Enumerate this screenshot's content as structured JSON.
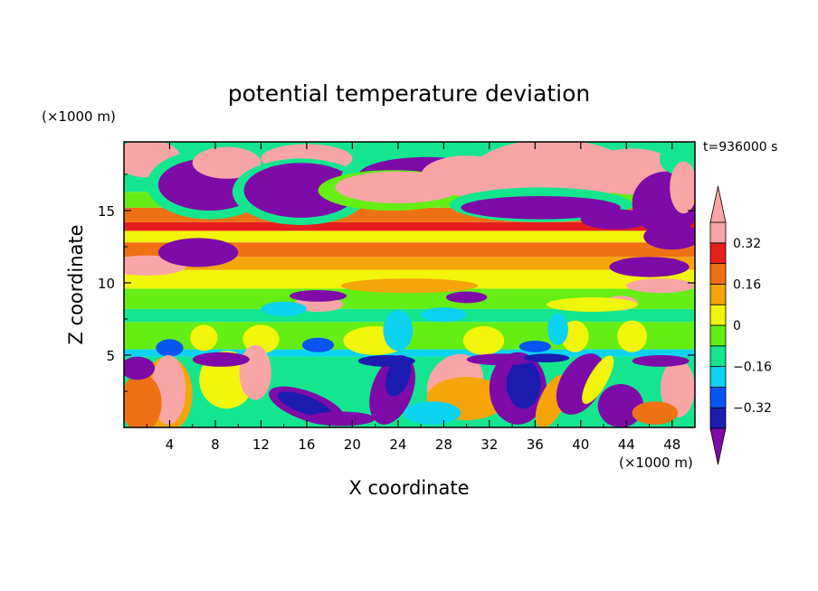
{
  "chart_data": {
    "type": "heatmap",
    "title": "potential temperature deviation",
    "xlabel": "X coordinate",
    "ylabel": "Z coordinate",
    "x_unit": "(×1000 m)",
    "y_unit": "(×1000 m)",
    "time_label": "t=936000 s",
    "xlim": [
      0,
      50
    ],
    "ylim": [
      0,
      19.75
    ],
    "x_ticks": [
      4,
      8,
      12,
      16,
      20,
      24,
      28,
      32,
      36,
      40,
      44,
      48
    ],
    "x_tick_labels": [
      "4",
      "8",
      "12",
      "16",
      "20",
      "24",
      "28",
      "32",
      "36",
      "40",
      "44",
      "48"
    ],
    "y_ticks": [
      5,
      10,
      15
    ],
    "y_tick_labels": [
      "5",
      "10",
      "15"
    ],
    "colorbar": {
      "levels": [
        -0.4,
        -0.32,
        -0.24,
        -0.16,
        -0.08,
        0,
        0.08,
        0.16,
        0.24,
        0.32,
        0.4
      ],
      "tick_values": [
        -0.32,
        -0.16,
        0,
        0.16,
        0.32
      ],
      "tick_labels": [
        "−0.32",
        "−0.16",
        "0",
        "0.16",
        "0.32"
      ],
      "colors": [
        "#7e0aa8",
        "#1c1cb0",
        "#0b55f4",
        "#0bd3f0",
        "#14e690",
        "#64ee14",
        "#f0f50a",
        "#f5a50a",
        "#f07014",
        "#e61e1e",
        "#faa5a5"
      ],
      "extend": "both"
    }
  }
}
